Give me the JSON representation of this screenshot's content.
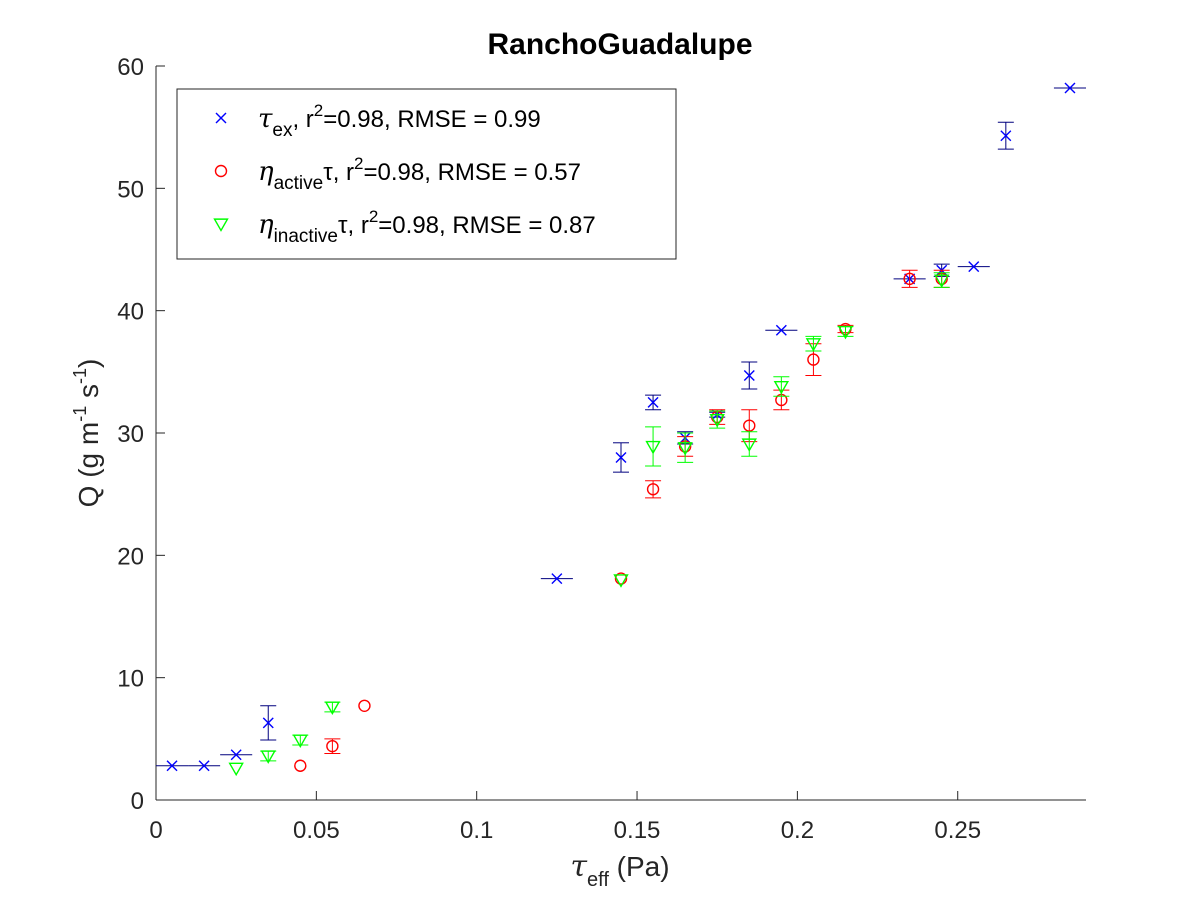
{
  "chart_data": {
    "type": "scatter",
    "title": "RanchoGuadalupe",
    "xlabel": {
      "symbol": "τ",
      "sub": "eff",
      "unit": " (Pa)"
    },
    "ylabel": {
      "text": "Q (g m",
      "sup1": "-1",
      "mid": " s",
      "sup2": "-1",
      "end": ")"
    },
    "xlim": [
      0,
      0.29
    ],
    "ylim": [
      0,
      60
    ],
    "xticks": [
      0,
      0.05,
      0.1,
      0.15,
      0.2,
      0.25
    ],
    "xtick_labels": [
      "0",
      "0.05",
      "0.1",
      "0.15",
      "0.2",
      "0.25"
    ],
    "yticks": [
      0,
      10,
      20,
      30,
      40,
      50,
      60
    ],
    "ytick_labels": [
      "0",
      "10",
      "20",
      "30",
      "40",
      "50",
      "60"
    ],
    "grid": false,
    "legend_position": "top-left",
    "series": [
      {
        "key": "tau_ex",
        "marker": "x",
        "color": "#0000ff",
        "errcolor": "#00007f",
        "legend": {
          "sym": "τ",
          "sub": "ex",
          "post": ", r",
          "sup": "2",
          "tail": "=0.98, RMSE = 0.99"
        },
        "points": [
          {
            "x": 0.005,
            "y": 2.8,
            "xerr": 0.005
          },
          {
            "x": 0.015,
            "y": 2.8,
            "xerr": 0.005
          },
          {
            "x": 0.025,
            "y": 3.7,
            "xerr": 0.005
          },
          {
            "x": 0.035,
            "y": 6.3,
            "yerr": 1.4
          },
          {
            "x": 0.125,
            "y": 18.1,
            "xerr": 0.005
          },
          {
            "x": 0.145,
            "y": 28.0,
            "yerr": 1.2
          },
          {
            "x": 0.155,
            "y": 32.5,
            "yerr": 0.6
          },
          {
            "x": 0.165,
            "y": 29.6,
            "yerr": 0.5
          },
          {
            "x": 0.175,
            "y": 31.5,
            "yerr": 0.2
          },
          {
            "x": 0.185,
            "y": 34.7,
            "yerr": 1.1
          },
          {
            "x": 0.195,
            "y": 38.4,
            "xerr": 0.005
          },
          {
            "x": 0.235,
            "y": 42.6,
            "xerr": 0.005
          },
          {
            "x": 0.245,
            "y": 43.3,
            "yerr": 0.5
          },
          {
            "x": 0.255,
            "y": 43.6,
            "xerr": 0.005
          },
          {
            "x": 0.265,
            "y": 54.3,
            "yerr": 1.1
          },
          {
            "x": 0.285,
            "y": 58.2,
            "xerr": 0.005
          }
        ]
      },
      {
        "key": "eta_active",
        "marker": "o",
        "color": "#ff0000",
        "errcolor": "#ff0000",
        "legend": {
          "sym": "η",
          "sub": "active",
          "post": "τ, r",
          "sup": "2",
          "tail": "=0.98, RMSE = 0.57"
        },
        "points": [
          {
            "x": 0.045,
            "y": 2.8
          },
          {
            "x": 0.055,
            "y": 4.4,
            "yerr": 0.6
          },
          {
            "x": 0.065,
            "y": 7.7
          },
          {
            "x": 0.145,
            "y": 18.1
          },
          {
            "x": 0.155,
            "y": 25.4,
            "yerr": 0.7
          },
          {
            "x": 0.165,
            "y": 28.9,
            "yerr": 0.8
          },
          {
            "x": 0.175,
            "y": 31.3,
            "yerr": 0.6
          },
          {
            "x": 0.185,
            "y": 30.6,
            "yerr": 1.3
          },
          {
            "x": 0.195,
            "y": 32.7,
            "yerr": 0.8
          },
          {
            "x": 0.205,
            "y": 36.0,
            "yerr": 1.3
          },
          {
            "x": 0.215,
            "y": 38.5,
            "yerr": 0.3
          },
          {
            "x": 0.235,
            "y": 42.6,
            "yerr": 0.7
          },
          {
            "x": 0.245,
            "y": 42.6,
            "yerr": 0.7
          }
        ]
      },
      {
        "key": "eta_inactive",
        "marker": "v",
        "color": "#00ff00",
        "errcolor": "#00ff00",
        "legend": {
          "sym": "η",
          "sub": "inactive",
          "post": "τ, r",
          "sup": "2",
          "tail": "=0.98, RMSE = 0.87"
        },
        "points": [
          {
            "x": 0.025,
            "y": 2.6
          },
          {
            "x": 0.035,
            "y": 3.6,
            "yerr": 0.4
          },
          {
            "x": 0.045,
            "y": 4.9,
            "yerr": 0.4
          },
          {
            "x": 0.055,
            "y": 7.6,
            "yerr": 0.4
          },
          {
            "x": 0.145,
            "y": 18.0
          },
          {
            "x": 0.155,
            "y": 28.9,
            "yerr": 1.6
          },
          {
            "x": 0.165,
            "y": 28.8,
            "yerr": 1.2
          },
          {
            "x": 0.175,
            "y": 31.1,
            "yerr": 0.7
          },
          {
            "x": 0.185,
            "y": 29.1,
            "yerr": 1.0
          },
          {
            "x": 0.195,
            "y": 33.8,
            "yerr": 0.8
          },
          {
            "x": 0.205,
            "y": 37.3,
            "yerr": 0.6
          },
          {
            "x": 0.215,
            "y": 38.3,
            "yerr": 0.4
          },
          {
            "x": 0.245,
            "y": 42.5,
            "yerr": 0.6
          }
        ]
      }
    ]
  }
}
